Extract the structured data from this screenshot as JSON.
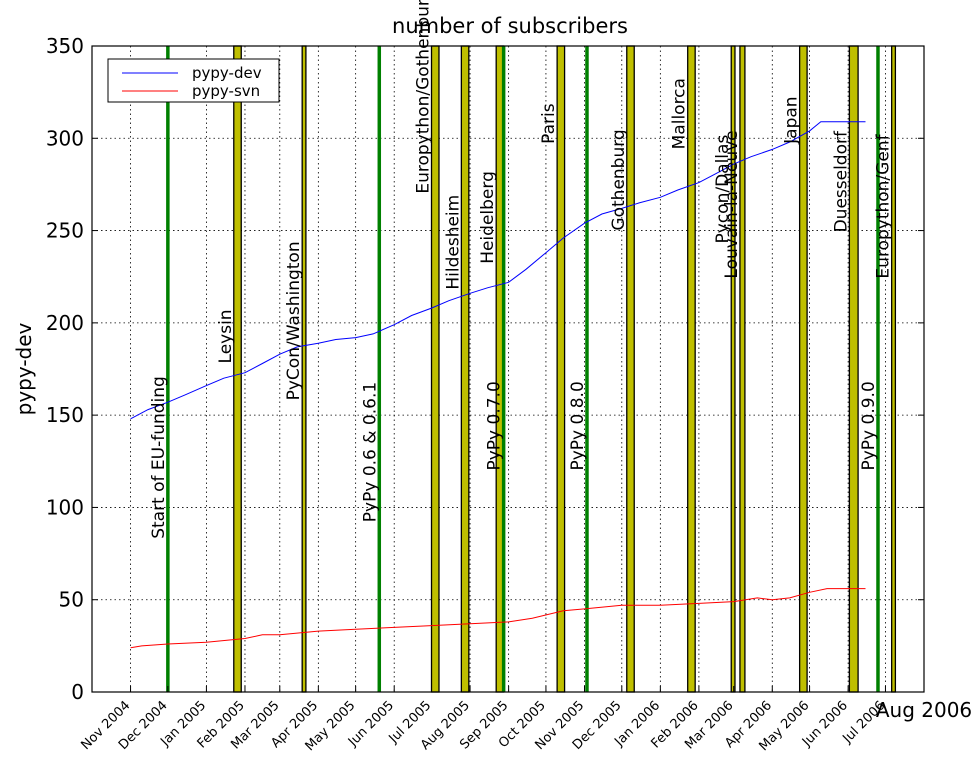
{
  "chart_data": {
    "type": "line",
    "title": "number of subscribers",
    "ylabel": "pypy-dev",
    "xlabel": "",
    "ylim": [
      0,
      350
    ],
    "xlim": [
      "2004-10-01",
      "2006-08-01"
    ],
    "grid": true,
    "legend_position": "top-left",
    "y_ticks": [
      0,
      50,
      100,
      150,
      200,
      250,
      300,
      350
    ],
    "x_ticks": [
      {
        "date": "2004-11-01",
        "label": "Nov 2004"
      },
      {
        "date": "2004-12-01",
        "label": "Dec 2004"
      },
      {
        "date": "2005-01-01",
        "label": "Jan 2005"
      },
      {
        "date": "2005-02-01",
        "label": "Feb 2005"
      },
      {
        "date": "2005-03-01",
        "label": "Mar 2005"
      },
      {
        "date": "2005-04-01",
        "label": "Apr 2005"
      },
      {
        "date": "2005-05-01",
        "label": "May 2005"
      },
      {
        "date": "2005-06-01",
        "label": "Jun 2005"
      },
      {
        "date": "2005-07-01",
        "label": "Jul 2005"
      },
      {
        "date": "2005-08-01",
        "label": "Aug 2005"
      },
      {
        "date": "2005-09-01",
        "label": "Sep 2005"
      },
      {
        "date": "2005-10-01",
        "label": "Oct 2005"
      },
      {
        "date": "2005-11-01",
        "label": "Nov 2005"
      },
      {
        "date": "2005-12-01",
        "label": "Dec 2005"
      },
      {
        "date": "2006-01-01",
        "label": "Jan 2006"
      },
      {
        "date": "2006-02-01",
        "label": "Feb 2006"
      },
      {
        "date": "2006-03-01",
        "label": "Mar 2006"
      },
      {
        "date": "2006-04-01",
        "label": "Apr 2006"
      },
      {
        "date": "2006-05-01",
        "label": "May 2006"
      },
      {
        "date": "2006-06-01",
        "label": "Jun 2006"
      },
      {
        "date": "2006-07-01",
        "label": "Jul 2006"
      }
    ],
    "x_end_label": "Aug 2006",
    "series": [
      {
        "name": "pypy-dev",
        "color": "#0000ff",
        "points": [
          [
            "2004-11-01",
            148
          ],
          [
            "2004-11-15",
            153
          ],
          [
            "2004-12-01",
            157
          ],
          [
            "2004-12-15",
            161
          ],
          [
            "2005-01-01",
            166
          ],
          [
            "2005-01-15",
            170
          ],
          [
            "2005-02-01",
            173
          ],
          [
            "2005-02-15",
            178
          ],
          [
            "2005-03-01",
            183
          ],
          [
            "2005-03-15",
            187
          ],
          [
            "2005-04-01",
            189
          ],
          [
            "2005-04-15",
            191
          ],
          [
            "2005-05-01",
            192
          ],
          [
            "2005-05-15",
            194
          ],
          [
            "2005-06-01",
            199
          ],
          [
            "2005-06-15",
            204
          ],
          [
            "2005-07-01",
            208
          ],
          [
            "2005-07-15",
            212
          ],
          [
            "2005-08-01",
            216
          ],
          [
            "2005-08-15",
            219
          ],
          [
            "2005-09-01",
            222
          ],
          [
            "2005-09-15",
            229
          ],
          [
            "2005-10-01",
            238
          ],
          [
            "2005-10-15",
            246
          ],
          [
            "2005-11-01",
            254
          ],
          [
            "2005-11-15",
            259
          ],
          [
            "2005-12-01",
            262
          ],
          [
            "2005-12-15",
            265
          ],
          [
            "2006-01-01",
            268
          ],
          [
            "2006-01-15",
            272
          ],
          [
            "2006-02-01",
            276
          ],
          [
            "2006-02-15",
            281
          ],
          [
            "2006-03-01",
            286
          ],
          [
            "2006-03-15",
            290
          ],
          [
            "2006-04-01",
            294
          ],
          [
            "2006-04-15",
            298
          ],
          [
            "2006-05-01",
            304
          ],
          [
            "2006-05-10",
            309
          ],
          [
            "2006-06-01",
            309
          ],
          [
            "2006-06-15",
            309
          ]
        ]
      },
      {
        "name": "pypy-svn",
        "color": "#ff0000",
        "points": [
          [
            "2004-11-01",
            24
          ],
          [
            "2004-11-10",
            25
          ],
          [
            "2004-12-01",
            26
          ],
          [
            "2005-01-01",
            27
          ],
          [
            "2005-02-01",
            29
          ],
          [
            "2005-02-15",
            31
          ],
          [
            "2005-03-01",
            31
          ],
          [
            "2005-04-01",
            33
          ],
          [
            "2005-05-01",
            34
          ],
          [
            "2005-06-01",
            35
          ],
          [
            "2005-07-01",
            36
          ],
          [
            "2005-08-01",
            37
          ],
          [
            "2005-09-01",
            38
          ],
          [
            "2005-09-20",
            40
          ],
          [
            "2005-10-15",
            44
          ],
          [
            "2005-11-01",
            45
          ],
          [
            "2005-12-01",
            47
          ],
          [
            "2006-01-01",
            47
          ],
          [
            "2006-02-01",
            48
          ],
          [
            "2006-03-01",
            49
          ],
          [
            "2006-03-20",
            51
          ],
          [
            "2006-04-01",
            50
          ],
          [
            "2006-04-15",
            51
          ],
          [
            "2006-05-01",
            54
          ],
          [
            "2006-05-15",
            56
          ],
          [
            "2006-06-15",
            56
          ]
        ]
      }
    ],
    "release_events": [
      {
        "date": "2004-12-01",
        "label": "Start of EU-funding"
      },
      {
        "date": "2005-05-20",
        "label": "PyPy 0.6 & 0.6.1"
      },
      {
        "date": "2005-08-28",
        "label": "PyPy 0.7.0"
      },
      {
        "date": "2005-11-03",
        "label": "PyPy 0.8.0"
      },
      {
        "date": "2006-06-25",
        "label": "PyPy 0.9.0"
      }
    ],
    "sprint_events": [
      {
        "start": "2005-01-23",
        "end": "2005-01-29",
        "label": "Leysin"
      },
      {
        "start": "2005-03-19",
        "end": "2005-03-22",
        "label": "PyCon/Washington"
      },
      {
        "start": "2005-07-01",
        "end": "2005-07-07",
        "label": "Europython/Gothenburg"
      },
      {
        "start": "2005-07-25",
        "end": "2005-07-31",
        "label": "Hildesheim"
      },
      {
        "start": "2005-08-22",
        "end": "2005-08-28",
        "label": "Heidelberg"
      },
      {
        "start": "2005-10-10",
        "end": "2005-10-16",
        "label": "Paris"
      },
      {
        "start": "2005-12-05",
        "end": "2005-12-11",
        "label": "Gothenburg"
      },
      {
        "start": "2006-01-23",
        "end": "2006-01-29",
        "label": "Mallorca"
      },
      {
        "start": "2006-02-27",
        "end": "2006-03-02",
        "label": "Pycon/Dallas"
      },
      {
        "start": "2006-03-06",
        "end": "2006-03-10",
        "label": "Louvain-la-Neuve"
      },
      {
        "start": "2006-04-23",
        "end": "2006-04-29",
        "label": "Japan"
      },
      {
        "start": "2006-06-02",
        "end": "2006-06-09",
        "label": "Duesseldorf"
      },
      {
        "start": "2006-07-06",
        "end": "2006-07-09",
        "label": "Europython/Genf"
      }
    ]
  }
}
